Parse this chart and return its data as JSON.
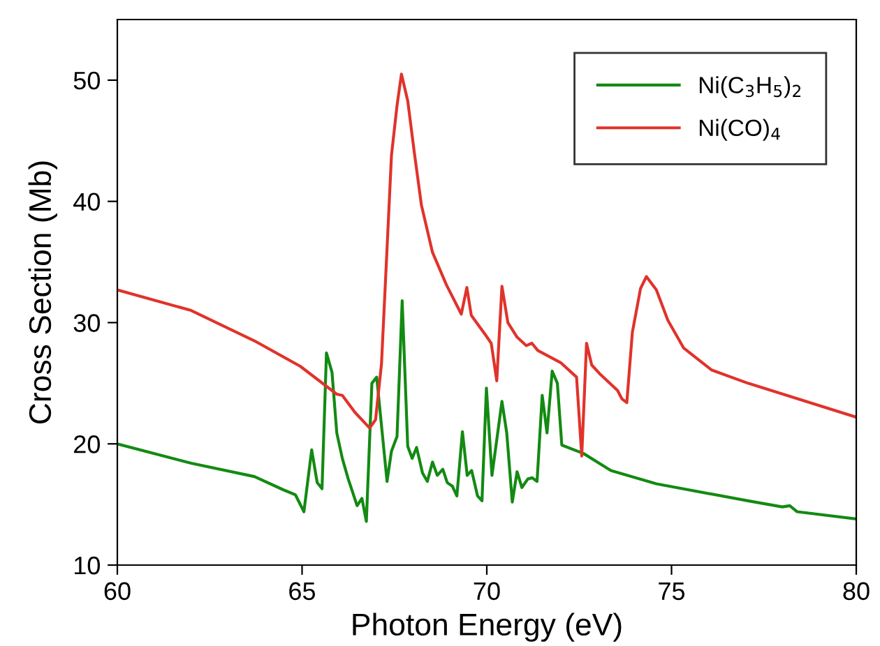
{
  "chart_data": {
    "type": "line",
    "xlabel": "Photon Energy (eV)",
    "ylabel": "Cross Section (Mb)",
    "xlim": [
      60,
      80
    ],
    "ylim": [
      10,
      55
    ],
    "xticks": [
      60,
      65,
      70,
      75,
      80
    ],
    "yticks": [
      10,
      20,
      30,
      40,
      50
    ],
    "grid": false,
    "legend": "top right",
    "marker": "none",
    "line_style": "solid",
    "series": [
      {
        "name": "Ni(C$_{3}$H$_{5}$)$_{2}$",
        "color": "#138a13",
        "x": [
          60,
          62,
          63.71,
          64.5,
          64.82,
          65.05,
          65.26,
          65.41,
          65.54,
          65.66,
          65.81,
          65.94,
          66.09,
          66.25,
          66.49,
          66.62,
          66.74,
          66.89,
          67.02,
          67.3,
          67.42,
          67.57,
          67.71,
          67.86,
          67.98,
          68.1,
          68.26,
          68.39,
          68.53,
          68.66,
          68.81,
          68.93,
          69.07,
          69.19,
          69.34,
          69.47,
          69.59,
          69.75,
          69.87,
          69.99,
          70.14,
          70.41,
          70.54,
          70.69,
          70.82,
          70.95,
          71.11,
          71.23,
          71.36,
          71.5,
          71.63,
          71.77,
          71.91,
          72.03,
          72.62,
          73.36,
          74.59,
          77.07,
          78.0,
          78.2,
          78.4,
          80
        ],
        "values": [
          20.0,
          18.4,
          17.3,
          16.2,
          15.8,
          14.4,
          19.5,
          16.8,
          16.3,
          27.5,
          25.9,
          20.9,
          18.8,
          17.1,
          14.9,
          15.5,
          13.6,
          25.0,
          25.5,
          16.9,
          19.4,
          20.6,
          31.8,
          19.8,
          18.8,
          19.7,
          17.6,
          16.9,
          18.5,
          17.4,
          17.9,
          16.8,
          16.5,
          15.7,
          21.0,
          17.4,
          17.8,
          15.7,
          15.3,
          24.6,
          17.4,
          23.5,
          20.9,
          15.2,
          17.7,
          16.4,
          17.1,
          17.2,
          16.9,
          24.0,
          20.9,
          26.0,
          25.0,
          19.9,
          19.2,
          17.8,
          16.7,
          15.3,
          14.8,
          14.9,
          14.4,
          13.8
        ]
      },
      {
        "name": "Ni(CO)$_{4}$",
        "color": "#e0332b",
        "x": [
          60,
          62,
          63.71,
          64.95,
          65.94,
          66.09,
          66.43,
          66.83,
          66.99,
          67.15,
          67.3,
          67.42,
          67.57,
          67.69,
          67.86,
          68.04,
          68.23,
          68.53,
          68.91,
          69.31,
          69.46,
          69.58,
          69.96,
          70.12,
          70.27,
          70.41,
          70.57,
          70.82,
          71.07,
          71.22,
          71.38,
          71.69,
          72.0,
          72.43,
          72.57,
          72.7,
          72.84,
          73.05,
          73.54,
          73.66,
          73.79,
          73.94,
          74.16,
          74.32,
          74.59,
          74.9,
          75.33,
          76.08,
          77.07,
          80
        ],
        "values": [
          32.7,
          31.0,
          28.5,
          26.4,
          24.1,
          24.0,
          22.6,
          21.3,
          22.0,
          26.6,
          36.1,
          43.8,
          47.9,
          50.5,
          48.3,
          44.0,
          39.7,
          35.8,
          33.1,
          30.7,
          32.9,
          30.6,
          29.0,
          28.3,
          25.2,
          33.0,
          30.0,
          28.8,
          28.1,
          28.3,
          27.7,
          27.2,
          26.7,
          25.5,
          19.0,
          28.3,
          26.5,
          25.8,
          24.4,
          23.7,
          23.4,
          29.2,
          32.8,
          33.8,
          32.7,
          30.2,
          27.9,
          26.1,
          25.0,
          22.2
        ]
      }
    ]
  }
}
